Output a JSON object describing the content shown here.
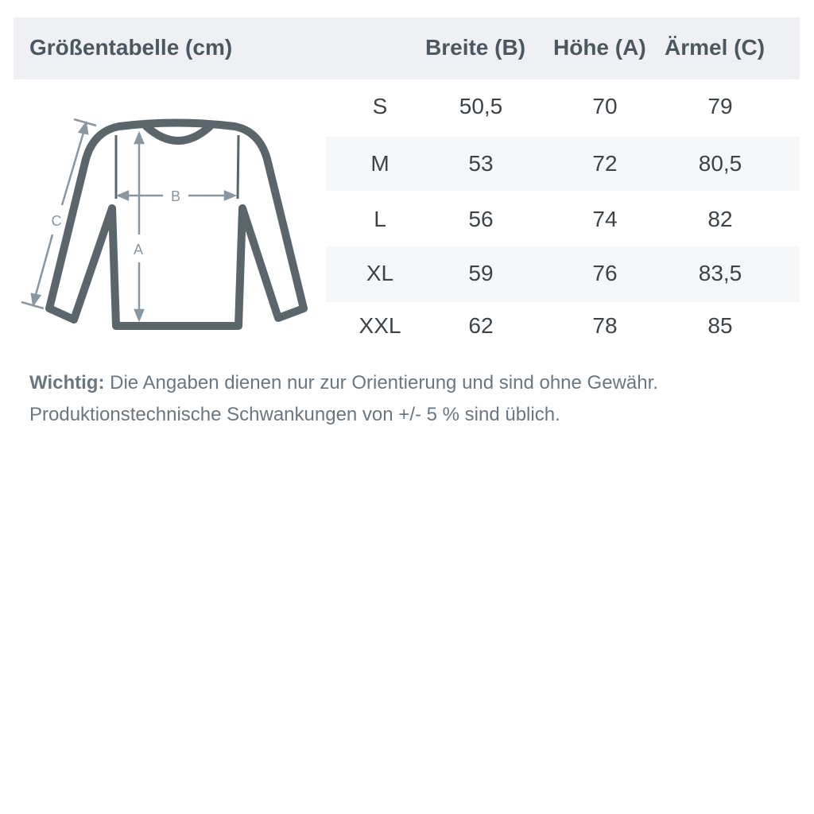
{
  "title": "Größentabelle (cm)",
  "columns": [
    "Breite (B)",
    "Höhe (A)",
    "Ärmel (C)"
  ],
  "rows": [
    {
      "size": "S",
      "values": [
        "50,5",
        "70",
        "79"
      ]
    },
    {
      "size": "M",
      "values": [
        "53",
        "72",
        "80,5"
      ]
    },
    {
      "size": "L",
      "values": [
        "56",
        "74",
        "82"
      ]
    },
    {
      "size": "XL",
      "values": [
        "59",
        "76",
        "83,5"
      ]
    },
    {
      "size": "XXL",
      "values": [
        "62",
        "78",
        "85"
      ]
    }
  ],
  "diagram": {
    "labels": {
      "a": "A",
      "b": "B",
      "c": "C"
    },
    "icon": "longsleeve-shirt-icon"
  },
  "note": {
    "label": "Wichtig:",
    "line1": " Die Angaben dienen nur zur Orientierung und sind ohne Gewähr.",
    "line2": "Produktionstechnische Schwankungen von +/- 5 % sind üblich."
  },
  "colors": {
    "header_bg": "#eef0f3",
    "outline": "#5a666b",
    "arrows": "#8a96a0"
  }
}
